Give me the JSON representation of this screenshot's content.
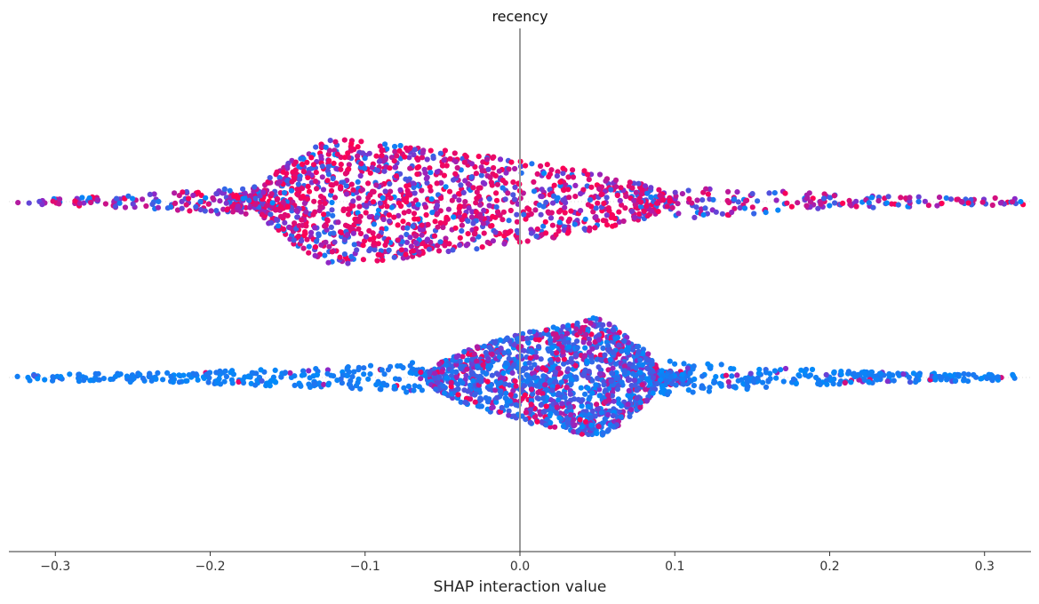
{
  "chart_data": {
    "type": "scatter",
    "subtype": "shap-beeswarm",
    "title": "recency",
    "xlabel": "SHAP interaction value",
    "ylabel": "",
    "xlim": [
      -0.33,
      0.33
    ],
    "zero_line": 0.0,
    "xticks": [
      {
        "value": -0.3,
        "label": "−0.3"
      },
      {
        "value": -0.2,
        "label": "−0.2"
      },
      {
        "value": -0.1,
        "label": "−0.1"
      },
      {
        "value": 0.0,
        "label": "0.0"
      },
      {
        "value": 0.1,
        "label": "0.1"
      },
      {
        "value": 0.2,
        "label": "0.2"
      },
      {
        "value": 0.3,
        "label": "0.3"
      }
    ],
    "colormap": {
      "low": "#008bfb",
      "high": "#ff0052"
    },
    "grid": false,
    "legend": "none",
    "series": [
      {
        "row": 1,
        "x_range": [
          -0.325,
          0.325
        ],
        "median": -0.05,
        "dense_range": [
          -0.17,
          0.1
        ],
        "peak_density_x": -0.12,
        "color_mix": "mixed blue, purple and magenta"
      },
      {
        "row": 2,
        "x_range": [
          -0.325,
          0.32
        ],
        "median": 0.025,
        "dense_range": [
          -0.06,
          0.09
        ],
        "peak_density_x": 0.05,
        "color_mix": "mostly blue in tails, mixed in core"
      }
    ]
  }
}
